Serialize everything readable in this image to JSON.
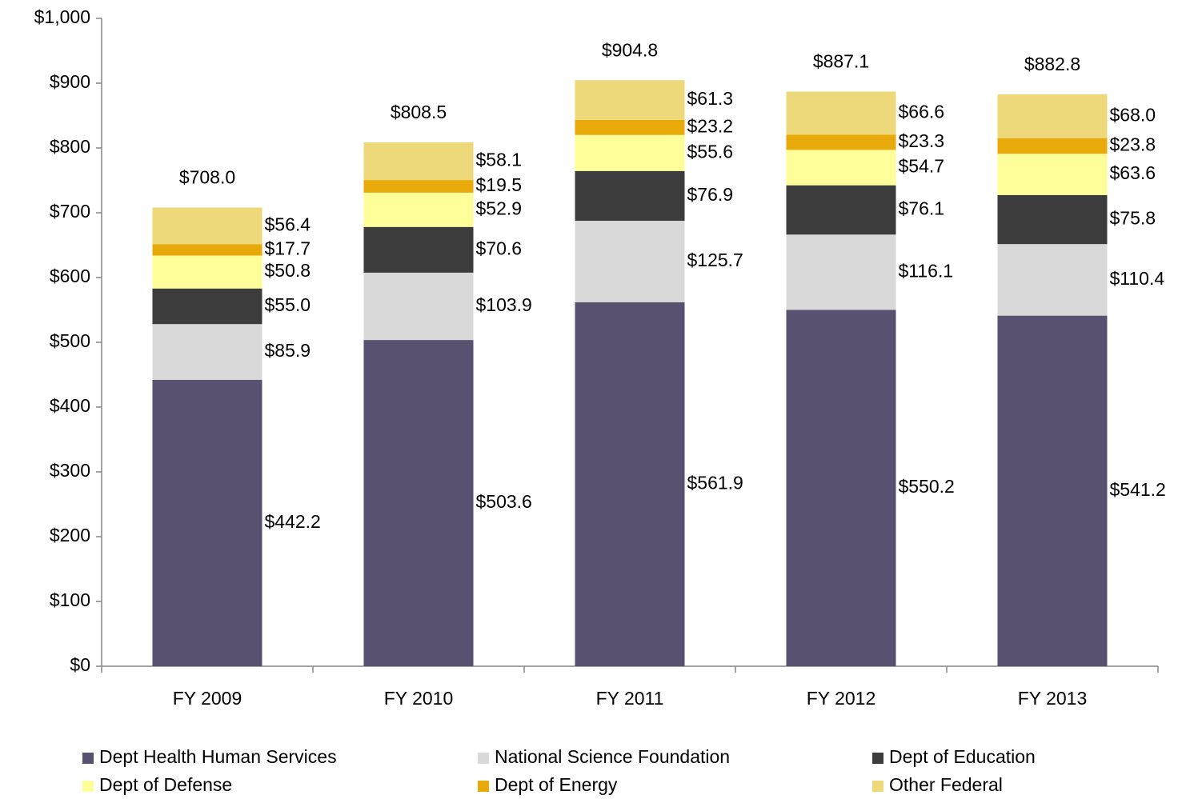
{
  "chart_data": {
    "type": "stacked_bar",
    "categories": [
      "FY 2009",
      "FY 2010",
      "FY 2011",
      "FY 2012",
      "FY 2013"
    ],
    "series": [
      {
        "name": "Dept Health Human Services",
        "color": "#58516f",
        "values": [
          442.2,
          503.6,
          561.9,
          550.2,
          541.2
        ],
        "value_labels": [
          "$442.2",
          "$503.6",
          "$561.9",
          "$550.2",
          "$541.2"
        ]
      },
      {
        "name": "National Science Foundation",
        "color": "#d9d9d9",
        "values": [
          85.9,
          103.9,
          125.7,
          116.1,
          110.4
        ],
        "value_labels": [
          "$85.9",
          "$103.9",
          "$125.7",
          "$116.1",
          "$110.4"
        ]
      },
      {
        "name": "Dept of Education",
        "color": "#3c3c3c",
        "values": [
          55.0,
          70.6,
          76.9,
          76.1,
          75.8
        ],
        "value_labels": [
          "$55.0",
          "$70.6",
          "$76.9",
          "$76.1",
          "$75.8"
        ]
      },
      {
        "name": "Dept of Defense",
        "color": "#ffff99",
        "values": [
          50.8,
          52.9,
          55.6,
          54.7,
          63.6
        ],
        "value_labels": [
          "$50.8",
          "$52.9",
          "$55.6",
          "$54.7",
          "$63.6"
        ]
      },
      {
        "name": "Dept of Energy",
        "color": "#e8a90a",
        "values": [
          17.7,
          19.5,
          23.2,
          23.3,
          23.8
        ],
        "value_labels": [
          "$17.7",
          "$19.5",
          "$23.2",
          "$23.3",
          "$23.8"
        ]
      },
      {
        "name": "Other Federal",
        "color": "#eed97a",
        "values": [
          56.4,
          58.1,
          61.3,
          66.6,
          68.0
        ],
        "value_labels": [
          "$56.4",
          "$58.1",
          "$61.3",
          "$66.6",
          "$68.0"
        ]
      }
    ],
    "totals": {
      "values": [
        708.0,
        808.5,
        904.8,
        887.1,
        882.8
      ],
      "value_labels": [
        "$708.0",
        "$808.5",
        "$904.8",
        "$887.1",
        "$882.8"
      ]
    },
    "ylim": [
      0,
      1000
    ],
    "yticks": [
      {
        "value": 0,
        "label": "$0"
      },
      {
        "value": 100,
        "label": "$100"
      },
      {
        "value": 200,
        "label": "$200"
      },
      {
        "value": 300,
        "label": "$300"
      },
      {
        "value": 400,
        "label": "$400"
      },
      {
        "value": 500,
        "label": "$500"
      },
      {
        "value": 600,
        "label": "$600"
      },
      {
        "value": 700,
        "label": "$700"
      },
      {
        "value": 800,
        "label": "$800"
      },
      {
        "value": 900,
        "label": "$900"
      },
      {
        "value": 1000,
        "label": "$1,000"
      }
    ],
    "legend": "bottom"
  }
}
